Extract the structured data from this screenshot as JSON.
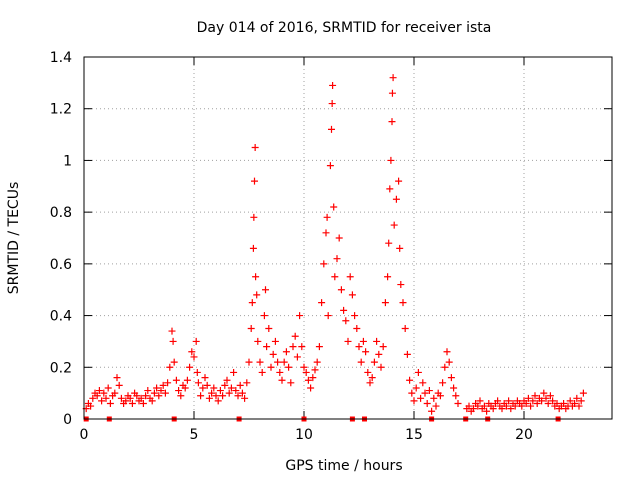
{
  "chart_data": {
    "type": "scatter",
    "title": "Day 014 of 2016, SRMTID for receiver ista",
    "xlabel": "GPS time / hours",
    "ylabel": "SRMTID / TECUs",
    "xlim": [
      0,
      24
    ],
    "ylim": [
      0,
      1.4
    ],
    "x_ticks": [
      0,
      5,
      10,
      15,
      20
    ],
    "x_tick_labels": [
      "0",
      "5",
      "10",
      "15",
      "20"
    ],
    "y_ticks": [
      0,
      0.2,
      0.4,
      0.6,
      0.8,
      1,
      1.2,
      1.4
    ],
    "y_tick_labels": [
      "0",
      "0.2",
      "0.4",
      "0.6",
      "0.8",
      "1",
      "1.2",
      "1.4"
    ],
    "grid": true,
    "marker": "+",
    "series_color": "#ff0000",
    "baseline_markers_x": [
      0.1,
      1.15,
      4.1,
      7.05,
      10.0,
      12.2,
      12.75,
      15.8,
      17.35,
      18.35,
      21.55
    ],
    "series": [
      {
        "name": "SRMTID",
        "points": [
          [
            0.1,
            0.04
          ],
          [
            0.2,
            0.06
          ],
          [
            0.3,
            0.05
          ],
          [
            0.4,
            0.08
          ],
          [
            0.5,
            0.1
          ],
          [
            0.6,
            0.09
          ],
          [
            0.7,
            0.11
          ],
          [
            0.8,
            0.07
          ],
          [
            0.9,
            0.1
          ],
          [
            1.0,
            0.08
          ],
          [
            1.1,
            0.12
          ],
          [
            1.2,
            0.06
          ],
          [
            1.3,
            0.09
          ],
          [
            1.4,
            0.1
          ],
          [
            1.5,
            0.16
          ],
          [
            1.6,
            0.13
          ],
          [
            1.7,
            0.08
          ],
          [
            1.8,
            0.06
          ],
          [
            1.9,
            0.07
          ],
          [
            2.0,
            0.09
          ],
          [
            2.1,
            0.08
          ],
          [
            2.2,
            0.06
          ],
          [
            2.3,
            0.1
          ],
          [
            2.4,
            0.09
          ],
          [
            2.5,
            0.07
          ],
          [
            2.6,
            0.08
          ],
          [
            2.7,
            0.06
          ],
          [
            2.8,
            0.09
          ],
          [
            2.9,
            0.11
          ],
          [
            3.0,
            0.08
          ],
          [
            3.1,
            0.07
          ],
          [
            3.2,
            0.1
          ],
          [
            3.3,
            0.12
          ],
          [
            3.4,
            0.09
          ],
          [
            3.5,
            0.11
          ],
          [
            3.6,
            0.13
          ],
          [
            3.7,
            0.1
          ],
          [
            3.8,
            0.14
          ],
          [
            3.9,
            0.2
          ],
          [
            4.0,
            0.34
          ],
          [
            4.05,
            0.3
          ],
          [
            4.1,
            0.22
          ],
          [
            4.2,
            0.15
          ],
          [
            4.3,
            0.11
          ],
          [
            4.4,
            0.09
          ],
          [
            4.5,
            0.13
          ],
          [
            4.6,
            0.12
          ],
          [
            4.7,
            0.15
          ],
          [
            4.8,
            0.2
          ],
          [
            4.9,
            0.26
          ],
          [
            5.0,
            0.24
          ],
          [
            5.1,
            0.3
          ],
          [
            5.15,
            0.18
          ],
          [
            5.2,
            0.14
          ],
          [
            5.3,
            0.09
          ],
          [
            5.4,
            0.12
          ],
          [
            5.5,
            0.16
          ],
          [
            5.6,
            0.13
          ],
          [
            5.7,
            0.08
          ],
          [
            5.8,
            0.1
          ],
          [
            5.9,
            0.12
          ],
          [
            6.0,
            0.09
          ],
          [
            6.1,
            0.07
          ],
          [
            6.2,
            0.11
          ],
          [
            6.3,
            0.09
          ],
          [
            6.4,
            0.13
          ],
          [
            6.5,
            0.15
          ],
          [
            6.6,
            0.1
          ],
          [
            6.7,
            0.12
          ],
          [
            6.8,
            0.18
          ],
          [
            6.9,
            0.11
          ],
          [
            7.0,
            0.09
          ],
          [
            7.1,
            0.13
          ],
          [
            7.2,
            0.1
          ],
          [
            7.3,
            0.08
          ],
          [
            7.4,
            0.14
          ],
          [
            7.5,
            0.22
          ],
          [
            7.6,
            0.35
          ],
          [
            7.65,
            0.45
          ],
          [
            7.7,
            0.66
          ],
          [
            7.72,
            0.78
          ],
          [
            7.75,
            0.92
          ],
          [
            7.78,
            1.05
          ],
          [
            7.8,
            0.55
          ],
          [
            7.85,
            0.48
          ],
          [
            7.9,
            0.3
          ],
          [
            8.0,
            0.22
          ],
          [
            8.1,
            0.18
          ],
          [
            8.2,
            0.4
          ],
          [
            8.25,
            0.5
          ],
          [
            8.3,
            0.28
          ],
          [
            8.4,
            0.35
          ],
          [
            8.5,
            0.2
          ],
          [
            8.6,
            0.25
          ],
          [
            8.7,
            0.3
          ],
          [
            8.8,
            0.22
          ],
          [
            8.9,
            0.18
          ],
          [
            9.0,
            0.15
          ],
          [
            9.1,
            0.22
          ],
          [
            9.2,
            0.26
          ],
          [
            9.3,
            0.2
          ],
          [
            9.4,
            0.14
          ],
          [
            9.5,
            0.28
          ],
          [
            9.6,
            0.32
          ],
          [
            9.7,
            0.24
          ],
          [
            9.8,
            0.4
          ],
          [
            9.9,
            0.28
          ],
          [
            10.0,
            0.2
          ],
          [
            10.1,
            0.18
          ],
          [
            10.2,
            0.15
          ],
          [
            10.3,
            0.12
          ],
          [
            10.4,
            0.16
          ],
          [
            10.5,
            0.19
          ],
          [
            10.6,
            0.22
          ],
          [
            10.7,
            0.28
          ],
          [
            10.8,
            0.45
          ],
          [
            10.9,
            0.6
          ],
          [
            11.0,
            0.72
          ],
          [
            11.05,
            0.78
          ],
          [
            11.1,
            0.4
          ],
          [
            11.2,
            0.98
          ],
          [
            11.25,
            1.12
          ],
          [
            11.28,
            1.22
          ],
          [
            11.3,
            1.29
          ],
          [
            11.35,
            0.82
          ],
          [
            11.4,
            0.55
          ],
          [
            11.5,
            0.62
          ],
          [
            11.6,
            0.7
          ],
          [
            11.7,
            0.5
          ],
          [
            11.8,
            0.42
          ],
          [
            11.9,
            0.38
          ],
          [
            12.0,
            0.3
          ],
          [
            12.1,
            0.55
          ],
          [
            12.2,
            0.48
          ],
          [
            12.3,
            0.4
          ],
          [
            12.4,
            0.35
          ],
          [
            12.5,
            0.28
          ],
          [
            12.6,
            0.22
          ],
          [
            12.7,
            0.3
          ],
          [
            12.8,
            0.26
          ],
          [
            12.9,
            0.18
          ],
          [
            13.0,
            0.14
          ],
          [
            13.1,
            0.16
          ],
          [
            13.2,
            0.22
          ],
          [
            13.3,
            0.3
          ],
          [
            13.4,
            0.25
          ],
          [
            13.5,
            0.2
          ],
          [
            13.6,
            0.28
          ],
          [
            13.7,
            0.45
          ],
          [
            13.8,
            0.55
          ],
          [
            13.85,
            0.68
          ],
          [
            13.9,
            0.89
          ],
          [
            13.95,
            1.0
          ],
          [
            14.0,
            1.15
          ],
          [
            14.02,
            1.26
          ],
          [
            14.05,
            1.32
          ],
          [
            14.1,
            0.75
          ],
          [
            14.2,
            0.85
          ],
          [
            14.3,
            0.92
          ],
          [
            14.35,
            0.66
          ],
          [
            14.4,
            0.52
          ],
          [
            14.5,
            0.45
          ],
          [
            14.6,
            0.35
          ],
          [
            14.7,
            0.25
          ],
          [
            14.8,
            0.15
          ],
          [
            14.9,
            0.1
          ],
          [
            15.0,
            0.07
          ],
          [
            15.1,
            0.12
          ],
          [
            15.2,
            0.18
          ],
          [
            15.3,
            0.08
          ],
          [
            15.4,
            0.14
          ],
          [
            15.5,
            0.1
          ],
          [
            15.6,
            0.06
          ],
          [
            15.7,
            0.11
          ],
          [
            15.8,
            0.03
          ],
          [
            15.9,
            0.08
          ],
          [
            16.0,
            0.05
          ],
          [
            16.1,
            0.1
          ],
          [
            16.2,
            0.09
          ],
          [
            16.3,
            0.14
          ],
          [
            16.4,
            0.2
          ],
          [
            16.5,
            0.26
          ],
          [
            16.6,
            0.22
          ],
          [
            16.7,
            0.16
          ],
          [
            16.8,
            0.12
          ],
          [
            16.9,
            0.09
          ],
          [
            17.0,
            0.06
          ],
          [
            17.4,
            0.04
          ],
          [
            17.5,
            0.05
          ],
          [
            17.6,
            0.03
          ],
          [
            17.7,
            0.04
          ],
          [
            17.8,
            0.06
          ],
          [
            17.9,
            0.05
          ],
          [
            18.0,
            0.07
          ],
          [
            18.1,
            0.04
          ],
          [
            18.2,
            0.05
          ],
          [
            18.3,
            0.03
          ],
          [
            18.4,
            0.06
          ],
          [
            18.5,
            0.05
          ],
          [
            18.6,
            0.04
          ],
          [
            18.7,
            0.06
          ],
          [
            18.8,
            0.07
          ],
          [
            18.9,
            0.05
          ],
          [
            19.0,
            0.04
          ],
          [
            19.1,
            0.06
          ],
          [
            19.2,
            0.05
          ],
          [
            19.3,
            0.07
          ],
          [
            19.4,
            0.04
          ],
          [
            19.5,
            0.06
          ],
          [
            19.6,
            0.05
          ],
          [
            19.7,
            0.07
          ],
          [
            19.8,
            0.06
          ],
          [
            19.9,
            0.05
          ],
          [
            20.0,
            0.07
          ],
          [
            20.1,
            0.06
          ],
          [
            20.2,
            0.08
          ],
          [
            20.3,
            0.05
          ],
          [
            20.4,
            0.07
          ],
          [
            20.5,
            0.09
          ],
          [
            20.6,
            0.06
          ],
          [
            20.7,
            0.08
          ],
          [
            20.8,
            0.07
          ],
          [
            20.9,
            0.1
          ],
          [
            21.0,
            0.08
          ],
          [
            21.1,
            0.06
          ],
          [
            21.2,
            0.09
          ],
          [
            21.3,
            0.07
          ],
          [
            21.4,
            0.05
          ],
          [
            21.5,
            0.06
          ],
          [
            21.6,
            0.04
          ],
          [
            21.7,
            0.05
          ],
          [
            21.8,
            0.06
          ],
          [
            21.9,
            0.04
          ],
          [
            22.0,
            0.05
          ],
          [
            22.1,
            0.07
          ],
          [
            22.2,
            0.05
          ],
          [
            22.3,
            0.06
          ],
          [
            22.4,
            0.08
          ],
          [
            22.5,
            0.05
          ],
          [
            22.6,
            0.07
          ],
          [
            22.7,
            0.1
          ]
        ]
      }
    ]
  }
}
